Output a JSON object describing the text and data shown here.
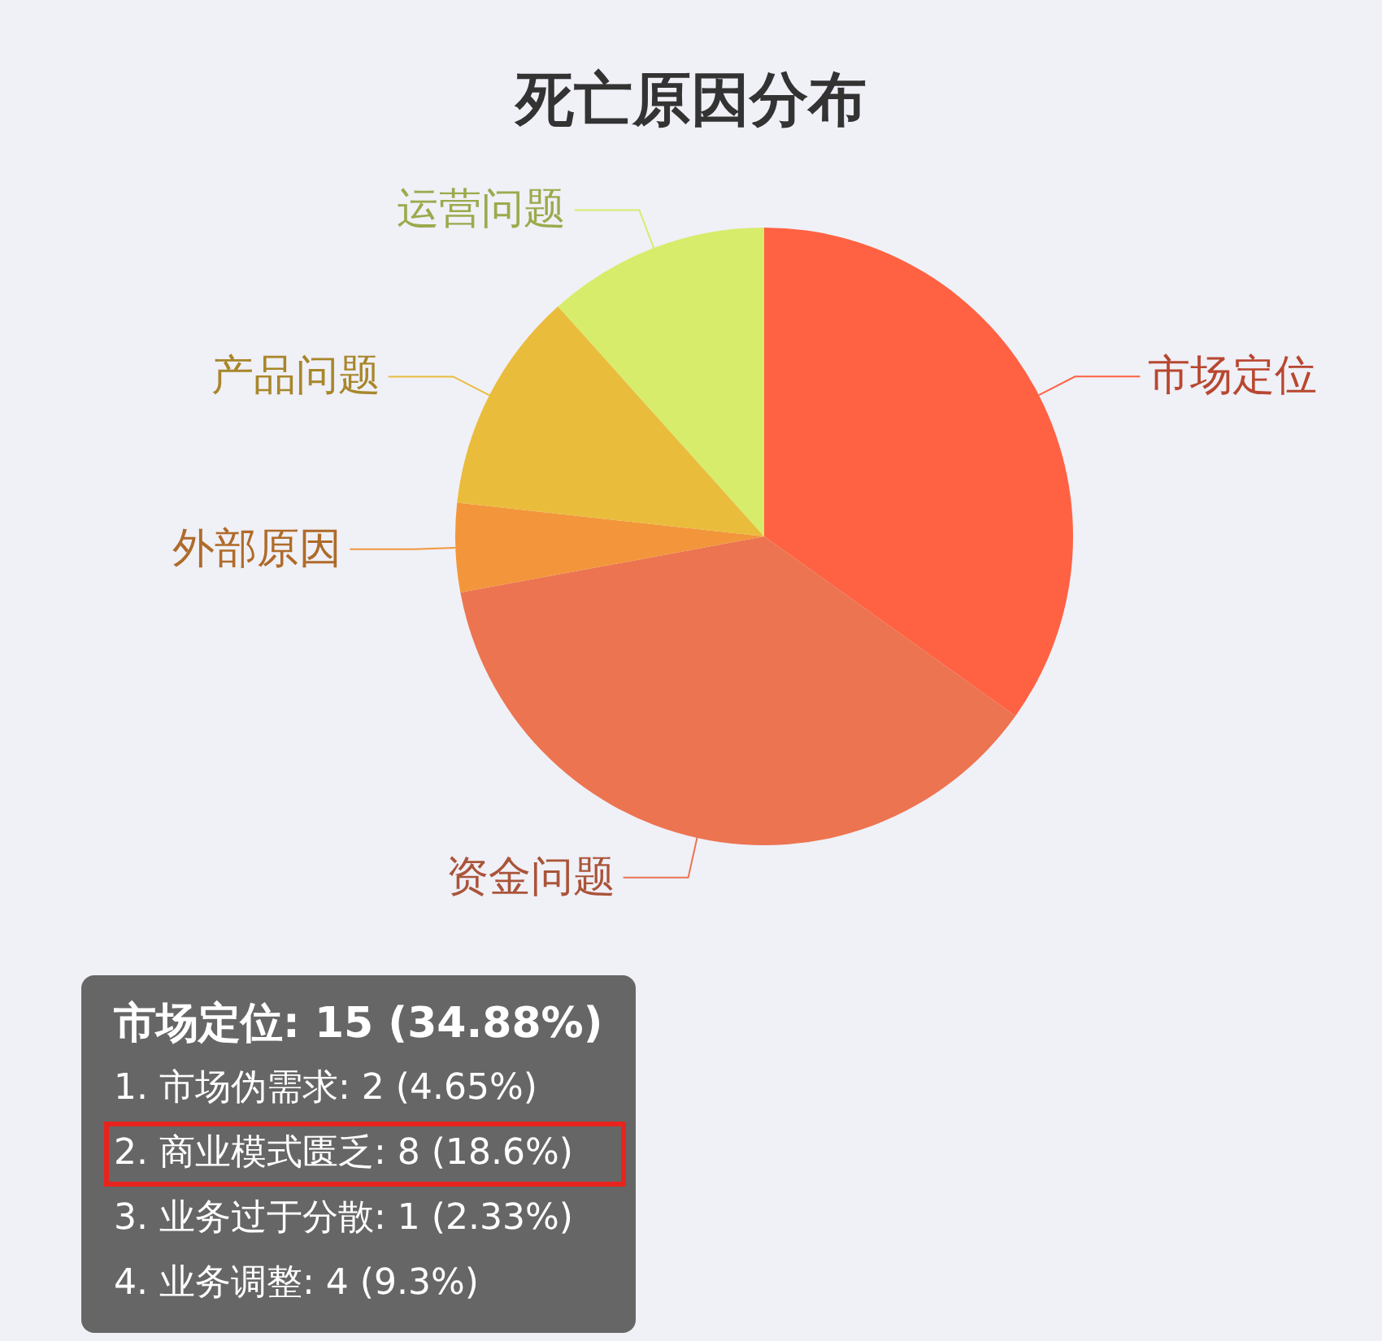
{
  "chart_data": {
    "type": "pie",
    "title": "死亡原因分布",
    "categories": [
      "市场定位",
      "资金问题",
      "外部原因",
      "产品问题",
      "运营问题"
    ],
    "values": [
      34.88,
      37.21,
      4.65,
      11.63,
      11.63
    ],
    "colors": [
      "#ff6242",
      "#ec7450",
      "#f3953a",
      "#eabc3c",
      "#d7ec6a"
    ],
    "annotations": [
      "市场定位: 15 (34.88%)",
      "1. 市场伪需求: 2 (4.65%)",
      "2. 商业模式匮乏: 8 (18.6%)",
      "3. 业务过于分散: 1 (2.33%)",
      "4. 业务调整: 4 (9.3%)"
    ]
  }
}
